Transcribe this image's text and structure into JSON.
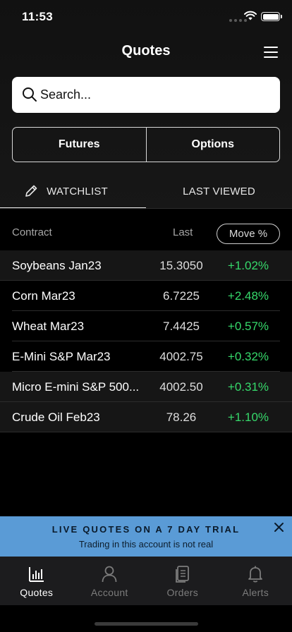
{
  "status": {
    "time": "11:53"
  },
  "header": {
    "title": "Quotes"
  },
  "search": {
    "placeholder": "Search..."
  },
  "segments": [
    {
      "label": "Futures"
    },
    {
      "label": "Options"
    }
  ],
  "tabs": [
    {
      "label": "WATCHLIST",
      "active": true
    },
    {
      "label": "LAST VIEWED",
      "active": false
    }
  ],
  "table": {
    "headers": {
      "contract": "Contract",
      "last": "Last",
      "move": "Move %"
    },
    "rows": [
      {
        "name": "Soybeans Jan23",
        "last": "15.3050",
        "move": "+1.02%"
      },
      {
        "name": "Corn Mar23",
        "last": "6.7225",
        "move": "+2.48%"
      },
      {
        "name": "Wheat Mar23",
        "last": "7.4425",
        "move": "+0.57%"
      },
      {
        "name": "E-Mini S&P Mar23",
        "last": "4002.75",
        "move": "+0.32%"
      },
      {
        "name": "Micro E-mini S&P 500...",
        "last": "4002.50",
        "move": "+0.31%"
      },
      {
        "name": "Crude Oil Feb23",
        "last": "78.26",
        "move": "+1.10%"
      }
    ]
  },
  "banner": {
    "title": "LIVE QUOTES ON A 7 DAY TRIAL",
    "subtitle": "Trading in this account is not real"
  },
  "nav": [
    {
      "label": "Quotes",
      "icon": "bar-chart-icon",
      "active": true
    },
    {
      "label": "Account",
      "icon": "person-icon",
      "active": false
    },
    {
      "label": "Orders",
      "icon": "document-icon",
      "active": false
    },
    {
      "label": "Alerts",
      "icon": "bell-icon",
      "active": false
    }
  ],
  "colors": {
    "positive": "#36d96b",
    "banner": "#5a9bd6",
    "background": "#000000"
  }
}
